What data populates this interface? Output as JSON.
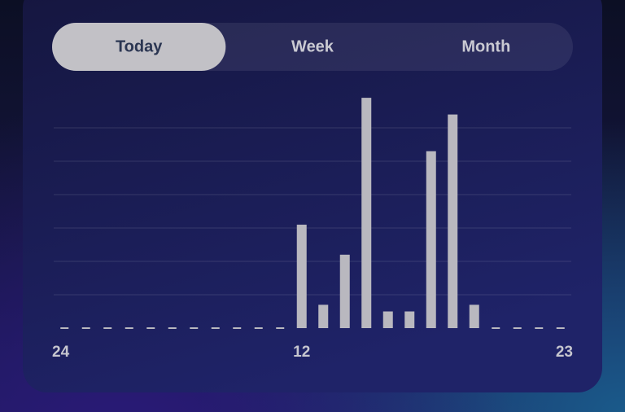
{
  "tabs": {
    "items": [
      "Today",
      "Week",
      "Month"
    ],
    "selected": 0
  },
  "chart_data": {
    "type": "bar",
    "categories": [
      "24",
      null,
      null,
      null,
      null,
      null,
      null,
      null,
      null,
      null,
      null,
      "12",
      null,
      null,
      null,
      null,
      null,
      null,
      null,
      null,
      null,
      null,
      null,
      "23"
    ],
    "values": [
      0,
      0,
      0,
      0,
      0,
      0,
      0,
      0,
      0,
      0,
      0,
      3.1,
      0.7,
      2.2,
      6.9,
      0.5,
      0.5,
      5.3,
      6.4,
      0.7,
      0,
      0,
      0,
      0
    ],
    "color": "#b9b8bf",
    "ylim": [
      0,
      7
    ],
    "yticks": [
      1,
      2,
      3,
      4,
      5,
      6
    ],
    "grid": true
  }
}
